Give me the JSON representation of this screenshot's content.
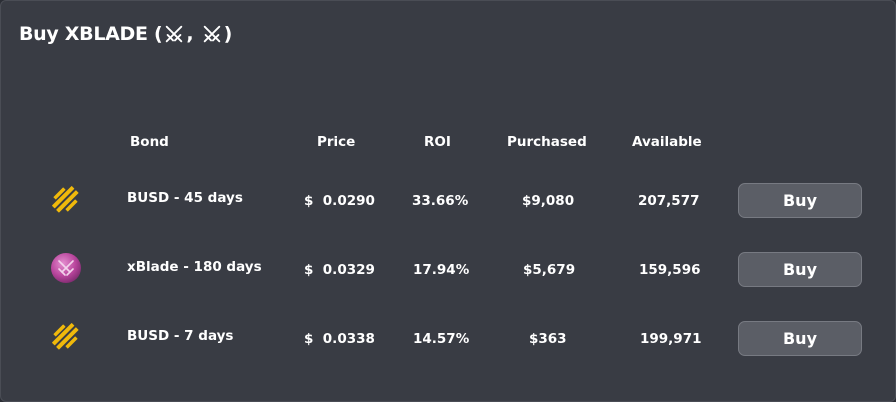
{
  "title": {
    "prefix": "Buy XBLADE (",
    "separator": ", ",
    "suffix": ")",
    "icons": [
      "crossed-swords-icon",
      "crossed-swords-icon"
    ]
  },
  "table": {
    "headers": {
      "bond": "Bond",
      "price": "Price",
      "roi": "ROI",
      "purchased": "Purchased",
      "available": "Available"
    },
    "rows": [
      {
        "icon": "busd-icon",
        "bond": "BUSD - 45 days",
        "price": "$  0.0290",
        "roi": "33.66%",
        "purchased": "$9,080",
        "available": "207,577",
        "button": "Buy"
      },
      {
        "icon": "xblade-icon",
        "bond": "xBlade - 180 days",
        "price": "$  0.0329",
        "roi": "17.94%",
        "purchased": "$5,679",
        "available": "159,596",
        "button": "Buy"
      },
      {
        "icon": "busd-icon",
        "bond": "BUSD - 7 days",
        "price": "$  0.0338",
        "roi": "14.57%",
        "purchased": "$363",
        "available": "199,971",
        "button": "Buy"
      }
    ]
  },
  "colors": {
    "background": "#393c44",
    "busd_gold": "#f0b90b",
    "xblade_pink": "#c44fa8",
    "button_bg": "#5b5e66"
  }
}
